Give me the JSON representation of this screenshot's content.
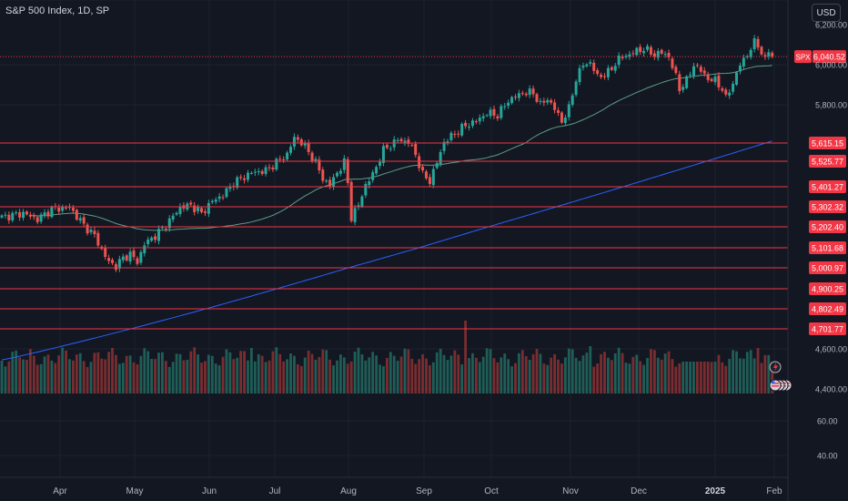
{
  "header": {
    "title": "S&P 500 Index, 1D, SP",
    "currency_button": "USD"
  },
  "chart_data": {
    "type": "candlestick",
    "symbol": "SPX",
    "last_price": "6,040.52",
    "x_tick_labels": [
      "Apr",
      "May",
      "Jun",
      "Jul",
      "Aug",
      "Sep",
      "Oct",
      "Nov",
      "Dec",
      "2025",
      "Feb"
    ],
    "price_axis_labels": [
      "6,200.00",
      "6,000.00",
      "5,800.00",
      "4,600.00",
      "4,400.00"
    ],
    "volume_axis_labels": [
      "60.00",
      "40.00"
    ],
    "horizontal_levels": [
      "5,615.15",
      "5,525.77",
      "5,401.27",
      "5,302.32",
      "5,202.40",
      "5,101.68",
      "5,000.97",
      "4,900.25",
      "4,802.49",
      "4,701.77"
    ],
    "anchors": [
      {
        "d": 0,
        "c": 5250
      },
      {
        "d": 6,
        "c": 5270
      },
      {
        "d": 10,
        "c": 5240
      },
      {
        "d": 14,
        "c": 5290
      },
      {
        "d": 19,
        "c": 5300
      },
      {
        "d": 23,
        "c": 5210
      },
      {
        "d": 26,
        "c": 5160
      },
      {
        "d": 28,
        "c": 5090
      },
      {
        "d": 30,
        "c": 5030
      },
      {
        "d": 32,
        "c": 5010
      },
      {
        "d": 34,
        "c": 5050
      },
      {
        "d": 36,
        "c": 5070
      },
      {
        "d": 38,
        "c": 5030
      },
      {
        "d": 40,
        "c": 5120
      },
      {
        "d": 43,
        "c": 5160
      },
      {
        "d": 46,
        "c": 5210
      },
      {
        "d": 50,
        "c": 5300
      },
      {
        "d": 53,
        "c": 5310
      },
      {
        "d": 56,
        "c": 5270
      },
      {
        "d": 59,
        "c": 5330
      },
      {
        "d": 62,
        "c": 5360
      },
      {
        "d": 65,
        "c": 5420
      },
      {
        "d": 70,
        "c": 5470
      },
      {
        "d": 74,
        "c": 5480
      },
      {
        "d": 77,
        "c": 5520
      },
      {
        "d": 80,
        "c": 5560
      },
      {
        "d": 82,
        "c": 5640
      },
      {
        "d": 84,
        "c": 5620
      },
      {
        "d": 86,
        "c": 5570
      },
      {
        "d": 88,
        "c": 5520
      },
      {
        "d": 90,
        "c": 5440
      },
      {
        "d": 92,
        "c": 5410
      },
      {
        "d": 94,
        "c": 5470
      },
      {
        "d": 96,
        "c": 5520
      },
      {
        "d": 97,
        "c": 5420
      },
      {
        "d": 98,
        "c": 5250
      },
      {
        "d": 100,
        "c": 5310
      },
      {
        "d": 102,
        "c": 5410
      },
      {
        "d": 104,
        "c": 5460
      },
      {
        "d": 107,
        "c": 5580
      },
      {
        "d": 111,
        "c": 5630
      },
      {
        "d": 114,
        "c": 5620
      },
      {
        "d": 116,
        "c": 5560
      },
      {
        "d": 118,
        "c": 5460
      },
      {
        "d": 120,
        "c": 5430
      },
      {
        "d": 122,
        "c": 5520
      },
      {
        "d": 124,
        "c": 5620
      },
      {
        "d": 127,
        "c": 5660
      },
      {
        "d": 130,
        "c": 5700
      },
      {
        "d": 133,
        "c": 5720
      },
      {
        "d": 136,
        "c": 5760
      },
      {
        "d": 139,
        "c": 5750
      },
      {
        "d": 142,
        "c": 5820
      },
      {
        "d": 146,
        "c": 5860
      },
      {
        "d": 149,
        "c": 5860
      },
      {
        "d": 151,
        "c": 5800
      },
      {
        "d": 153,
        "c": 5830
      },
      {
        "d": 155,
        "c": 5780
      },
      {
        "d": 157,
        "c": 5720
      },
      {
        "d": 159,
        "c": 5780
      },
      {
        "d": 161,
        "c": 5930
      },
      {
        "d": 163,
        "c": 6000
      },
      {
        "d": 165,
        "c": 6010
      },
      {
        "d": 167,
        "c": 5940
      },
      {
        "d": 170,
        "c": 5960
      },
      {
        "d": 173,
        "c": 6030
      },
      {
        "d": 177,
        "c": 6060
      },
      {
        "d": 180,
        "c": 6080
      },
      {
        "d": 183,
        "c": 6050
      },
      {
        "d": 185,
        "c": 6060
      },
      {
        "d": 187,
        "c": 6040
      },
      {
        "d": 189,
        "c": 5940
      },
      {
        "d": 190,
        "c": 5880
      },
      {
        "d": 192,
        "c": 5920
      },
      {
        "d": 194,
        "c": 6000
      },
      {
        "d": 196,
        "c": 5970
      },
      {
        "d": 198,
        "c": 5930
      },
      {
        "d": 200,
        "c": 5920
      },
      {
        "d": 202,
        "c": 5880
      },
      {
        "d": 203,
        "c": 5830
      },
      {
        "d": 205,
        "c": 5910
      },
      {
        "d": 207,
        "c": 6000
      },
      {
        "d": 209,
        "c": 6050
      },
      {
        "d": 211,
        "c": 6110
      },
      {
        "d": 212,
        "c": 6100
      },
      {
        "d": 214,
        "c": 6020
      },
      {
        "d": 215,
        "c": 6071
      },
      {
        "d": 216,
        "c": 6040.52
      }
    ]
  }
}
